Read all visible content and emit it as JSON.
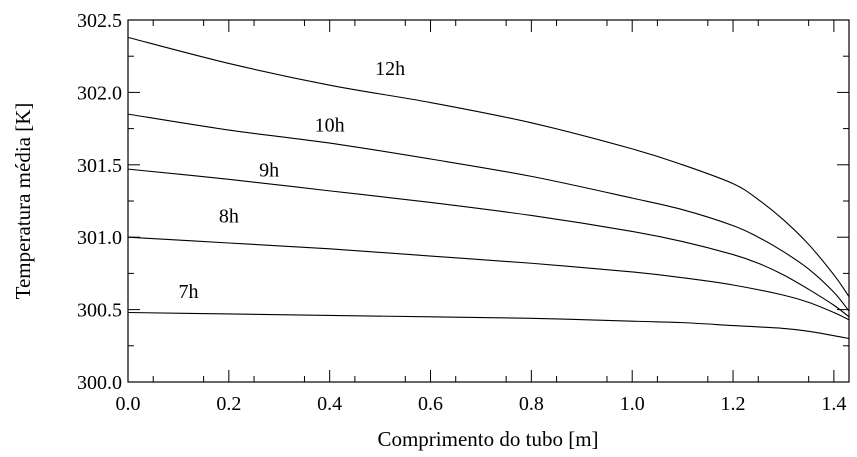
{
  "chart_data": {
    "type": "line",
    "title": "",
    "xlabel": "Comprimento do tubo [m]",
    "ylabel": "Temperatura média [K]",
    "xlim": [
      0.0,
      1.43
    ],
    "ylim": [
      300.0,
      302.5
    ],
    "grid": false,
    "x_ticks": [
      0.0,
      0.2,
      0.4,
      0.6,
      0.8,
      1.0,
      1.2,
      1.4
    ],
    "x_tick_labels": [
      "0.0",
      "0.2",
      "0.4",
      "0.6",
      "0.8",
      "1.0",
      "1.2",
      "1.4"
    ],
    "y_ticks": [
      300.0,
      300.5,
      301.0,
      301.5,
      302.0,
      302.5
    ],
    "y_tick_labels": [
      "300.0",
      "300.5",
      "301.0",
      "301.5",
      "302.0",
      "302.5"
    ],
    "series": [
      {
        "name": "7h",
        "label_x": 0.12,
        "label_y": 300.58,
        "x": [
          0.0,
          0.2,
          0.4,
          0.6,
          0.8,
          1.0,
          1.1,
          1.2,
          1.3,
          1.35,
          1.4,
          1.43
        ],
        "y": [
          300.48,
          300.47,
          300.46,
          300.45,
          300.44,
          300.42,
          300.41,
          300.39,
          300.37,
          300.35,
          300.32,
          300.3
        ]
      },
      {
        "name": "8h",
        "label_x": 0.2,
        "label_y": 301.1,
        "x": [
          0.0,
          0.2,
          0.4,
          0.6,
          0.8,
          1.0,
          1.1,
          1.2,
          1.3,
          1.35,
          1.4,
          1.43
        ],
        "y": [
          301.0,
          300.96,
          300.92,
          300.87,
          300.82,
          300.76,
          300.72,
          300.67,
          300.6,
          300.55,
          300.48,
          300.43
        ]
      },
      {
        "name": "9h",
        "label_x": 0.28,
        "label_y": 301.42,
        "x": [
          0.0,
          0.2,
          0.4,
          0.6,
          0.8,
          1.0,
          1.1,
          1.2,
          1.25,
          1.3,
          1.35,
          1.4,
          1.43
        ],
        "y": [
          301.47,
          301.4,
          301.32,
          301.24,
          301.15,
          301.04,
          300.97,
          300.88,
          300.82,
          300.74,
          300.64,
          300.53,
          300.45
        ]
      },
      {
        "name": "10h",
        "label_x": 0.4,
        "label_y": 301.73,
        "x": [
          0.0,
          0.2,
          0.4,
          0.6,
          0.8,
          1.0,
          1.1,
          1.2,
          1.25,
          1.3,
          1.35,
          1.4,
          1.43
        ],
        "y": [
          301.85,
          301.74,
          301.65,
          301.54,
          301.42,
          301.27,
          301.19,
          301.08,
          301.0,
          300.9,
          300.78,
          300.62,
          300.49
        ]
      },
      {
        "name": "12h",
        "label_x": 0.52,
        "label_y": 302.12,
        "x": [
          0.0,
          0.2,
          0.4,
          0.6,
          0.8,
          1.0,
          1.1,
          1.2,
          1.25,
          1.3,
          1.35,
          1.4,
          1.43
        ],
        "y": [
          302.38,
          302.2,
          302.05,
          301.93,
          301.79,
          301.61,
          301.5,
          301.37,
          301.26,
          301.12,
          300.95,
          300.74,
          300.59
        ]
      }
    ]
  }
}
